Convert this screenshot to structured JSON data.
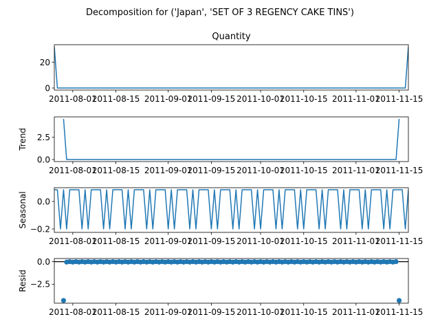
{
  "figure": {
    "suptitle": "Decomposition for ('Japan', 'SET OF 3 REGENCY CAKE TINS')"
  },
  "chart_data": [
    {
      "type": "line",
      "title": "Quantity",
      "ylabel": "",
      "x_range": [
        "2011-07-26",
        "2011-11-18"
      ],
      "ylim": [
        -1.6,
        33.6
      ],
      "yticks": [
        0,
        20
      ],
      "x_ticks": [
        "2011-08-01",
        "2011-08-15",
        "2011-09-01",
        "2011-09-15",
        "2011-10-01",
        "2011-10-15",
        "2011-11-01",
        "2011-11-15"
      ],
      "series": [
        {
          "x": [
            "2011-07-26",
            "2011-07-27",
            "2011-11-17",
            "2011-11-18"
          ],
          "y": [
            32,
            0,
            0,
            32
          ]
        }
      ]
    },
    {
      "type": "line",
      "title": "",
      "ylabel": "Trend",
      "x_range": [
        "2011-07-26",
        "2011-11-18"
      ],
      "ylim": [
        -0.23,
        4.8
      ],
      "yticks": [
        0.0,
        2.5
      ],
      "yticklabels": [
        "0.0",
        "2.5"
      ],
      "x_ticks": [
        "2011-08-01",
        "2011-08-15",
        "2011-09-01",
        "2011-09-15",
        "2011-10-01",
        "2011-10-15",
        "2011-11-01",
        "2011-11-15"
      ],
      "series": [
        {
          "x": [
            "2011-07-29",
            "2011-07-30",
            "2011-11-14",
            "2011-11-15"
          ],
          "y": [
            4.57,
            0,
            0,
            4.57
          ]
        }
      ]
    },
    {
      "type": "line",
      "title": "",
      "ylabel": "Seasonal",
      "x_range": [
        "2011-07-26",
        "2011-11-18"
      ],
      "ylim": [
        -0.225,
        0.1
      ],
      "yticks": [
        0.0,
        -0.2
      ],
      "yticklabels": [
        "0.0",
        "−0.2"
      ],
      "x_ticks": [
        "2011-08-01",
        "2011-08-15",
        "2011-09-01",
        "2011-09-15",
        "2011-10-01",
        "2011-10-15",
        "2011-11-01",
        "2011-11-15"
      ],
      "period": 7,
      "start": "2011-07-26",
      "weekly_pattern": [
        0.085,
        0.085,
        -0.2,
        0.085,
        -0.2,
        0.085,
        0.085
      ]
    },
    {
      "type": "scatter",
      "title": "",
      "ylabel": "Resid",
      "x_range": [
        "2011-07-26",
        "2011-11-18"
      ],
      "ylim": [
        -4.6,
        0.35
      ],
      "yticks": [
        0.0,
        -2.5
      ],
      "yticklabels": [
        "0.0",
        "−2.5"
      ],
      "x_ticks": [
        "2011-08-01",
        "2011-08-15",
        "2011-09-01",
        "2011-09-15",
        "2011-10-01",
        "2011-10-15",
        "2011-11-01",
        "2011-11-15"
      ],
      "hline": 0,
      "points_x_range": [
        "2011-07-29",
        "2011-11-15"
      ],
      "outliers": [
        {
          "x": "2011-07-29",
          "y": -4.3
        },
        {
          "x": "2011-11-15",
          "y": -4.3
        }
      ],
      "baseline_values": [
        -0.05,
        0.0
      ]
    }
  ]
}
